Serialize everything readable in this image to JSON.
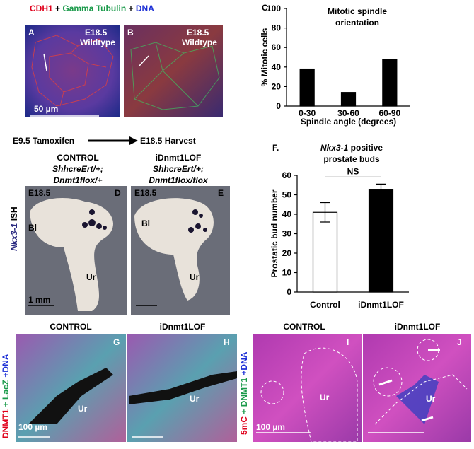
{
  "header": {
    "parts": [
      {
        "text": "CDH1",
        "color": "#e0001b"
      },
      {
        "text": "+",
        "color": "#000000"
      },
      {
        "text": "Gamma Tubulin",
        "color": "#1a9a4a"
      },
      {
        "text": "+",
        "color": "#000000"
      },
      {
        "text": "DNA",
        "color": "#1c2fd6"
      }
    ]
  },
  "panel_a": {
    "letter": "A",
    "stage": "E18.5",
    "genotype": "Wildtype",
    "scale": "50 µm"
  },
  "panel_b": {
    "letter": "B",
    "stage": "E18.5",
    "genotype": "Wildtype"
  },
  "timeline": {
    "start": "E9.5 Tamoxifen",
    "end": "E18.5 Harvest"
  },
  "control_label": {
    "name": "CONTROL",
    "line1": "ShhcreErt/+;",
    "line2": "Dnmt1flox/+"
  },
  "lof_label": {
    "name": "iDnmt1LOF",
    "line1": "ShhcreErt/+;",
    "line2": "Dnmt1flox/flox"
  },
  "ish_label": {
    "gene": "Nkx3-1",
    "method": "ISH"
  },
  "panel_d": {
    "stage": "E18.5",
    "letter": "D",
    "bl": "Bl",
    "ur": "Ur",
    "scale": "1 mm"
  },
  "panel_e": {
    "stage": "E18.5",
    "letter": "E",
    "bl": "Bl",
    "ur": "Ur"
  },
  "lower_left": {
    "side_parts": [
      "DNMT1",
      "+ LacZ",
      "+DNA"
    ],
    "control": "CONTROL",
    "lof": "iDnmt1LOF",
    "g_letter": "G",
    "h_letter": "H",
    "g_ur": "Ur",
    "h_ur": "Ur",
    "scale": "100 µm"
  },
  "lower_right": {
    "side_parts": [
      "5mC",
      "+ DNMT1",
      "+DNA"
    ],
    "control": "CONTROL",
    "lof": "iDnmt1LOF",
    "i_letter": "I",
    "j_letter": "J",
    "i_ur": "Ur",
    "j_ur": "Ur",
    "scale": "100 µm"
  },
  "chart_data": [
    {
      "type": "bar",
      "letter": "C.",
      "title": "Mitotic spindle",
      "title2": "orientation",
      "y_label": "% Mitotic cells",
      "x_label": "Spindle angle (degrees)",
      "categories": [
        "0-30",
        "30-60",
        "60-90"
      ],
      "values": [
        38,
        14,
        48
      ],
      "color": "#000000",
      "ylim": [
        0,
        100
      ],
      "yticks": [
        0,
        20,
        40,
        60,
        80,
        100
      ]
    },
    {
      "type": "bar",
      "letter": "F.",
      "title": "Nkx3-1",
      "title_rest": "positive",
      "title2": "prostate buds",
      "y_label": "Prostatic bud number",
      "categories": [
        "Control",
        "iDnmt1LOF"
      ],
      "values": [
        41,
        52.5
      ],
      "errors": [
        5,
        3
      ],
      "colors": [
        "#ffffff",
        "#000000"
      ],
      "annotation": "NS",
      "ylim": [
        0,
        60
      ],
      "yticks": [
        0,
        10,
        20,
        30,
        40,
        50,
        60
      ]
    }
  ]
}
